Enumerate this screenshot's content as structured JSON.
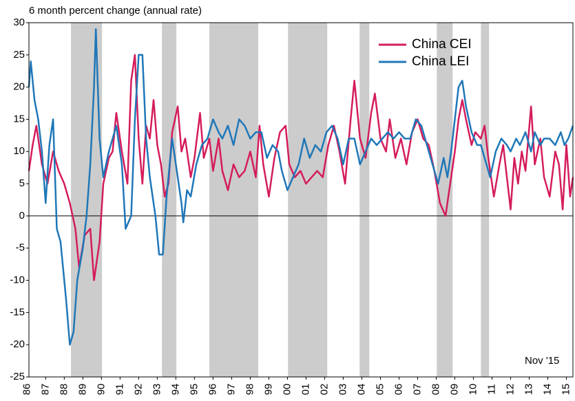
{
  "chart_data": {
    "type": "line",
    "title": "6 month percent change (annual rate)",
    "annotation": "Nov '15",
    "xlim": [
      1986.6,
      2015.85
    ],
    "ylim": [
      -25,
      30
    ],
    "yticks": [
      -25,
      -20,
      -15,
      -10,
      -5,
      0,
      5,
      10,
      15,
      20,
      25,
      30
    ],
    "xticks": [
      {
        "value": 1986.5,
        "label": "86"
      },
      {
        "value": 1987.5,
        "label": "87"
      },
      {
        "value": 1988.5,
        "label": "88"
      },
      {
        "value": 1989.5,
        "label": "89"
      },
      {
        "value": 1990.5,
        "label": "90"
      },
      {
        "value": 1991.5,
        "label": "91"
      },
      {
        "value": 1992.5,
        "label": "92"
      },
      {
        "value": 1993.5,
        "label": "93"
      },
      {
        "value": 1994.5,
        "label": "94"
      },
      {
        "value": 1995.5,
        "label": "95"
      },
      {
        "value": 1996.5,
        "label": "96"
      },
      {
        "value": 1997.5,
        "label": "97"
      },
      {
        "value": 1998.5,
        "label": "98"
      },
      {
        "value": 1999.5,
        "label": "99"
      },
      {
        "value": 2000.5,
        "label": "00"
      },
      {
        "value": 2001.5,
        "label": "01"
      },
      {
        "value": 2002.5,
        "label": "02"
      },
      {
        "value": 2003.5,
        "label": "03"
      },
      {
        "value": 2004.5,
        "label": "04"
      },
      {
        "value": 2005.5,
        "label": "05"
      },
      {
        "value": 2006.5,
        "label": "06"
      },
      {
        "value": 2007.5,
        "label": "07"
      },
      {
        "value": 2008.5,
        "label": "08"
      },
      {
        "value": 2009.5,
        "label": "09"
      },
      {
        "value": 2010.5,
        "label": "10"
      },
      {
        "value": 2011.5,
        "label": "11"
      },
      {
        "value": 2012.5,
        "label": "12"
      },
      {
        "value": 2013.5,
        "label": "13"
      },
      {
        "value": 2014.5,
        "label": "14"
      },
      {
        "value": 2015.5,
        "label": "15"
      }
    ],
    "shaded": [
      [
        1988.86,
        1990.53
      ],
      [
        1993.75,
        1994.53
      ],
      [
        1996.3,
        1998.93
      ],
      [
        2000.53,
        2002.64
      ],
      [
        2004.38,
        2004.9
      ],
      [
        2008.53,
        2009.38
      ],
      [
        2010.9,
        2011.34
      ]
    ],
    "shade_color": "#cccccc",
    "grid": false,
    "legend": "upper right",
    "series": [
      {
        "name": "China CEI",
        "color": "#d41c5c",
        "x": [
          1986.6,
          1986.8,
          1987.0,
          1987.3,
          1987.6,
          1987.9,
          1988.2,
          1988.5,
          1988.8,
          1989.1,
          1989.3,
          1989.6,
          1989.9,
          1990.1,
          1990.4,
          1990.6,
          1990.9,
          1991.1,
          1991.3,
          1991.6,
          1991.9,
          1992.1,
          1992.3,
          1992.5,
          1992.7,
          1992.9,
          1993.1,
          1993.3,
          1993.5,
          1993.7,
          1993.9,
          1994.1,
          1994.3,
          1994.6,
          1994.8,
          1995.0,
          1995.3,
          1995.5,
          1995.8,
          1996.0,
          1996.3,
          1996.5,
          1996.8,
          1997.0,
          1997.3,
          1997.6,
          1997.9,
          1998.2,
          1998.5,
          1998.8,
          1999.0,
          1999.2,
          1999.5,
          1999.8,
          2000.1,
          2000.4,
          2000.6,
          2000.9,
          2001.2,
          2001.5,
          2001.8,
          2002.1,
          2002.4,
          2002.7,
          2003.0,
          2003.3,
          2003.6,
          2003.9,
          2004.1,
          2004.4,
          2004.7,
          2005.0,
          2005.2,
          2005.5,
          2005.8,
          2006.0,
          2006.3,
          2006.6,
          2006.9,
          2007.2,
          2007.5,
          2007.8,
          2008.1,
          2008.4,
          2008.7,
          2009.0,
          2009.2,
          2009.5,
          2009.7,
          2009.9,
          2010.1,
          2010.4,
          2010.6,
          2010.9,
          2011.1,
          2011.3,
          2011.6,
          2011.9,
          2012.1,
          2012.3,
          2012.5,
          2012.7,
          2012.9,
          2013.1,
          2013.3,
          2013.6,
          2013.8,
          2014.1,
          2014.3,
          2014.6,
          2014.9,
          2015.1,
          2015.3,
          2015.5,
          2015.7,
          2015.85
        ],
        "values": [
          7,
          11,
          14,
          8,
          5,
          10,
          7,
          5,
          2,
          -2,
          -8,
          -3,
          -2,
          -10,
          -4,
          5,
          9,
          10,
          16,
          10,
          5,
          21,
          25,
          12,
          5,
          14,
          12,
          18,
          11,
          8,
          3,
          5,
          13,
          17,
          10,
          12,
          6,
          9,
          16,
          9,
          12,
          7,
          12,
          7,
          4,
          8,
          6,
          7,
          10,
          6,
          14,
          8,
          3,
          9,
          13,
          14,
          8,
          6,
          7,
          5,
          6,
          7,
          6,
          11,
          14,
          10,
          5,
          15,
          21,
          12,
          9,
          16,
          19,
          12,
          10,
          15,
          9,
          12,
          8,
          13,
          15,
          12,
          11,
          7,
          2,
          0,
          4,
          10,
          15,
          18,
          15,
          11,
          13,
          12,
          14,
          9,
          3,
          8,
          11,
          6,
          1,
          9,
          5,
          10,
          7,
          17,
          8,
          12,
          6,
          3,
          10,
          8,
          1,
          11,
          3,
          6
        ]
      },
      {
        "name": "China LEI",
        "color": "#1f77b8",
        "x": [
          1986.6,
          1986.7,
          1986.9,
          1987.1,
          1987.3,
          1987.5,
          1987.7,
          1987.9,
          1988.1,
          1988.3,
          1988.6,
          1988.8,
          1989.0,
          1989.2,
          1989.5,
          1989.7,
          1989.9,
          1990.1,
          1990.2,
          1990.4,
          1990.6,
          1990.9,
          1991.1,
          1991.3,
          1991.6,
          1991.8,
          1992.1,
          1992.3,
          1992.5,
          1992.7,
          1992.9,
          1993.1,
          1993.4,
          1993.6,
          1993.8,
          1994.0,
          1994.3,
          1994.5,
          1994.8,
          1994.9,
          1995.1,
          1995.3,
          1995.6,
          1995.9,
          1996.2,
          1996.5,
          1996.8,
          1997.0,
          1997.3,
          1997.6,
          1997.9,
          1998.2,
          1998.5,
          1998.8,
          1999.1,
          1999.4,
          1999.7,
          2000.0,
          2000.2,
          2000.5,
          2000.8,
          2001.1,
          2001.4,
          2001.7,
          2002.0,
          2002.3,
          2002.6,
          2002.9,
          2003.2,
          2003.5,
          2003.8,
          2004.1,
          2004.4,
          2004.7,
          2005.0,
          2005.3,
          2005.6,
          2005.9,
          2006.2,
          2006.5,
          2006.8,
          2007.1,
          2007.4,
          2007.7,
          2008.0,
          2008.3,
          2008.6,
          2008.9,
          2009.1,
          2009.3,
          2009.5,
          2009.7,
          2009.9,
          2010.1,
          2010.4,
          2010.7,
          2010.9,
          2011.2,
          2011.4,
          2011.7,
          2012.0,
          2012.3,
          2012.5,
          2012.8,
          2013.0,
          2013.3,
          2013.6,
          2013.8,
          2014.1,
          2014.3,
          2014.6,
          2014.9,
          2015.2,
          2015.4,
          2015.6,
          2015.85
        ],
        "values": [
          20,
          24,
          18,
          15,
          10,
          2,
          11,
          15,
          -2,
          -4,
          -13,
          -20,
          -18,
          -10,
          -5,
          0,
          8,
          20,
          29,
          12,
          6,
          10,
          12,
          14,
          8,
          -2,
          0,
          15,
          25,
          25,
          12,
          6,
          0,
          -6,
          -6,
          3,
          12,
          8,
          2,
          -1,
          4,
          3,
          8,
          11,
          12,
          15,
          13,
          12,
          14,
          11,
          15,
          14,
          12,
          13,
          13,
          9,
          11,
          10,
          7,
          4,
          6,
          8,
          12,
          9,
          11,
          10,
          13,
          14,
          12,
          8,
          12,
          12,
          8,
          10,
          12,
          11,
          12,
          13,
          12,
          13,
          12,
          12,
          15,
          14,
          11,
          8,
          5,
          9,
          6,
          10,
          15,
          20,
          21,
          17,
          13,
          11,
          11,
          8,
          6,
          10,
          12,
          11,
          10,
          12,
          11,
          13,
          10,
          13,
          11,
          12,
          12,
          11,
          13,
          11,
          12,
          14
        ]
      }
    ]
  }
}
